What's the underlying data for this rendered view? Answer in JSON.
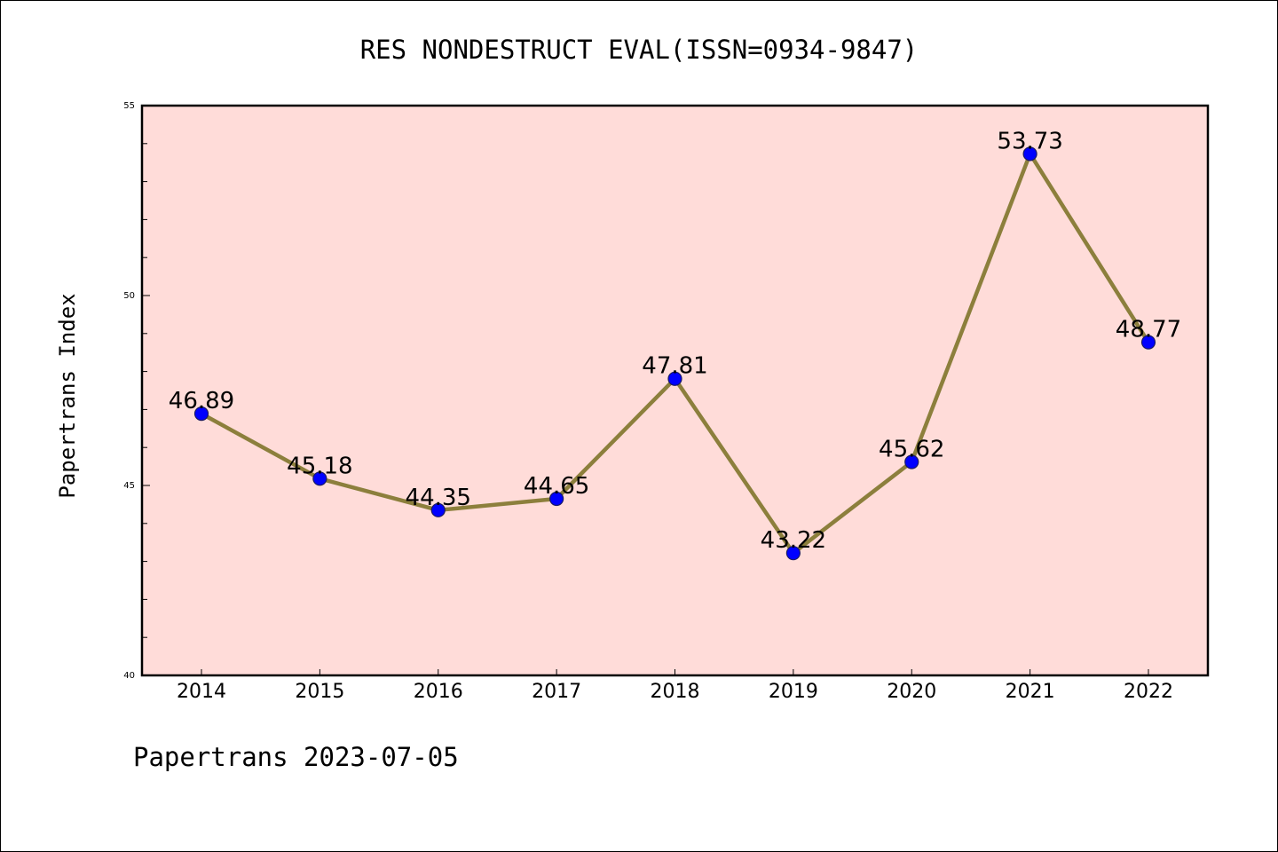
{
  "chart_data": {
    "type": "line",
    "title": "RES NONDESTRUCT EVAL(ISSN=0934-9847)",
    "ylabel": "Papertrans Index",
    "xlabel": "",
    "categories": [
      "2014",
      "2015",
      "2016",
      "2017",
      "2018",
      "2019",
      "2020",
      "2021",
      "2022"
    ],
    "values": [
      46.89,
      45.18,
      44.35,
      44.65,
      47.81,
      43.22,
      45.62,
      53.73,
      48.77
    ],
    "value_labels": [
      "46.89",
      "45.18",
      "44.35",
      "44.65",
      "47.81",
      "43.22",
      "45.62",
      "53.73",
      "48.77"
    ],
    "ylim": [
      40,
      55
    ],
    "y_major_ticks": [
      40,
      45,
      50,
      55
    ],
    "y_major_tick_labels": [
      "40",
      "45",
      "50",
      "55"
    ],
    "y_minor_step": 1,
    "grid": false,
    "legend": "none"
  },
  "footer": {
    "text": "Papertrans 2023-07-05"
  },
  "colors": {
    "plot_background": "#ffdcd9",
    "line": "#8c7f3c",
    "marker_fill": "#0000ff",
    "marker_edge": "#1a1a66",
    "axes": "#000000"
  }
}
